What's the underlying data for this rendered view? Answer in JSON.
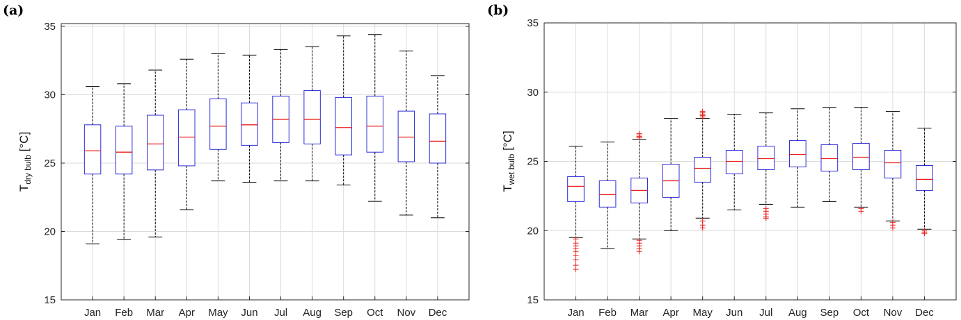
{
  "chart_data": [
    {
      "type": "box",
      "panel_label": "(a)",
      "title": "",
      "xlabel": "",
      "ylabel": "T",
      "ylabel_sub": "dry bulb",
      "ylabel_unit": " [°C]",
      "ylim": [
        15,
        35.2
      ],
      "yticks": [
        15,
        20,
        25,
        30,
        35
      ],
      "grid": true,
      "categories": [
        "Jan",
        "Feb",
        "Mar",
        "Apr",
        "May",
        "Jun",
        "Jul",
        "Aug",
        "Sep",
        "Oct",
        "Nov",
        "Dec"
      ],
      "boxes": [
        {
          "whisker_low": 19.1,
          "q1": 24.2,
          "median": 25.9,
          "q3": 27.8,
          "whisker_high": 30.6,
          "outliers": []
        },
        {
          "whisker_low": 19.4,
          "q1": 24.2,
          "median": 25.8,
          "q3": 27.7,
          "whisker_high": 30.8,
          "outliers": []
        },
        {
          "whisker_low": 19.6,
          "q1": 24.5,
          "median": 26.4,
          "q3": 28.5,
          "whisker_high": 31.8,
          "outliers": []
        },
        {
          "whisker_low": 21.6,
          "q1": 24.8,
          "median": 26.9,
          "q3": 28.9,
          "whisker_high": 32.6,
          "outliers": []
        },
        {
          "whisker_low": 23.7,
          "q1": 26.0,
          "median": 27.7,
          "q3": 29.7,
          "whisker_high": 33.0,
          "outliers": []
        },
        {
          "whisker_low": 23.6,
          "q1": 26.3,
          "median": 27.8,
          "q3": 29.4,
          "whisker_high": 32.9,
          "outliers": []
        },
        {
          "whisker_low": 23.7,
          "q1": 26.5,
          "median": 28.2,
          "q3": 29.9,
          "whisker_high": 33.3,
          "outliers": []
        },
        {
          "whisker_low": 23.7,
          "q1": 26.4,
          "median": 28.2,
          "q3": 30.3,
          "whisker_high": 33.5,
          "outliers": []
        },
        {
          "whisker_low": 23.4,
          "q1": 25.6,
          "median": 27.6,
          "q3": 29.8,
          "whisker_high": 34.3,
          "outliers": []
        },
        {
          "whisker_low": 22.2,
          "q1": 25.8,
          "median": 27.7,
          "q3": 29.9,
          "whisker_high": 34.4,
          "outliers": []
        },
        {
          "whisker_low": 21.2,
          "q1": 25.1,
          "median": 26.9,
          "q3": 28.8,
          "whisker_high": 33.2,
          "outliers": []
        },
        {
          "whisker_low": 21.0,
          "q1": 25.0,
          "median": 26.6,
          "q3": 28.6,
          "whisker_high": 31.4,
          "outliers": []
        }
      ],
      "colors": {
        "box": "#2b2bd6",
        "median": "#e8211c",
        "whisker": "#000000",
        "outlier": "#e8211c",
        "grid": "#dcdcdc"
      }
    },
    {
      "type": "box",
      "panel_label": "(b)",
      "title": "",
      "xlabel": "",
      "ylabel": "T",
      "ylabel_sub": "wet bulb",
      "ylabel_unit": " [°C]",
      "ylim": [
        15,
        35
      ],
      "yticks": [
        15,
        20,
        25,
        30,
        35
      ],
      "grid": true,
      "categories": [
        "Jan",
        "Feb",
        "Mar",
        "Apr",
        "May",
        "Jun",
        "Jul",
        "Aug",
        "Sep",
        "Oct",
        "Nov",
        "Dec"
      ],
      "boxes": [
        {
          "whisker_low": 19.5,
          "q1": 22.1,
          "median": 23.2,
          "q3": 23.9,
          "whisker_high": 26.1,
          "outliers": [
            19.4,
            19.1,
            18.9,
            18.7,
            18.5,
            18.2,
            17.9,
            17.5,
            17.2
          ]
        },
        {
          "whisker_low": 18.7,
          "q1": 21.7,
          "median": 22.6,
          "q3": 23.6,
          "whisker_high": 26.4,
          "outliers": []
        },
        {
          "whisker_low": 19.4,
          "q1": 22.0,
          "median": 22.9,
          "q3": 23.8,
          "whisker_high": 26.6,
          "outliers": [
            26.7,
            26.8,
            26.9,
            27.0,
            19.3,
            19.1,
            18.9,
            18.7,
            18.5
          ]
        },
        {
          "whisker_low": 20.0,
          "q1": 22.4,
          "median": 23.6,
          "q3": 24.8,
          "whisker_high": 28.1,
          "outliers": []
        },
        {
          "whisker_low": 20.9,
          "q1": 23.5,
          "median": 24.5,
          "q3": 25.3,
          "whisker_high": 28.1,
          "outliers": [
            28.2,
            28.3,
            28.4,
            28.5,
            28.6,
            20.7,
            20.4,
            20.2
          ]
        },
        {
          "whisker_low": 21.5,
          "q1": 24.1,
          "median": 25.0,
          "q3": 25.8,
          "whisker_high": 28.4,
          "outliers": []
        },
        {
          "whisker_low": 21.9,
          "q1": 24.4,
          "median": 25.2,
          "q3": 26.1,
          "whisker_high": 28.5,
          "outliers": [
            21.6,
            21.4,
            21.2,
            21.0,
            20.9
          ]
        },
        {
          "whisker_low": 21.7,
          "q1": 24.6,
          "median": 25.5,
          "q3": 26.5,
          "whisker_high": 28.8,
          "outliers": []
        },
        {
          "whisker_low": 22.1,
          "q1": 24.3,
          "median": 25.2,
          "q3": 26.2,
          "whisker_high": 28.9,
          "outliers": []
        },
        {
          "whisker_low": 21.7,
          "q1": 24.4,
          "median": 25.3,
          "q3": 26.3,
          "whisker_high": 28.9,
          "outliers": [
            21.6,
            21.4
          ]
        },
        {
          "whisker_low": 20.7,
          "q1": 23.8,
          "median": 24.9,
          "q3": 25.8,
          "whisker_high": 28.6,
          "outliers": [
            20.6,
            20.4,
            20.2
          ]
        },
        {
          "whisker_low": 20.1,
          "q1": 22.9,
          "median": 23.7,
          "q3": 24.7,
          "whisker_high": 27.4,
          "outliers": [
            20.0,
            19.9,
            19.8
          ]
        }
      ],
      "colors": {
        "box": "#2b2bd6",
        "median": "#e8211c",
        "whisker": "#000000",
        "outlier": "#e8211c",
        "grid": "#dcdcdc"
      }
    }
  ]
}
